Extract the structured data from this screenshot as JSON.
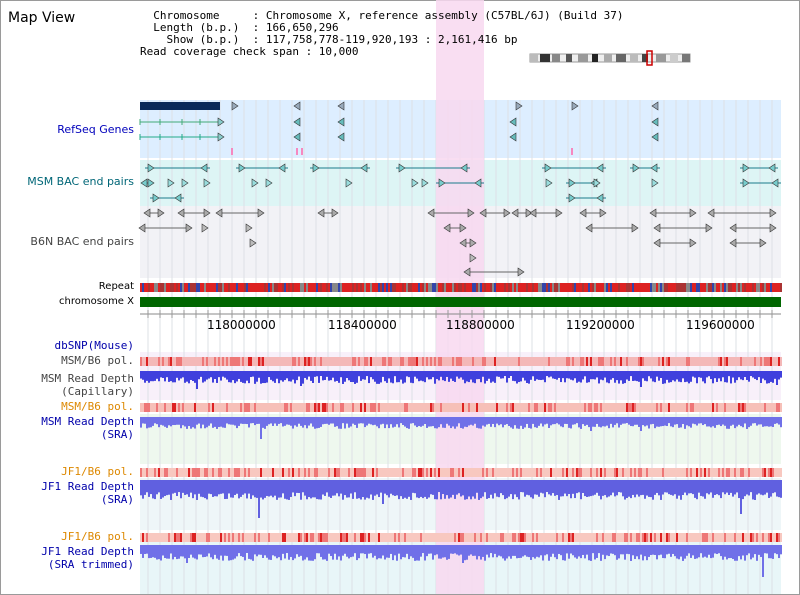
{
  "app": {
    "title": "Map View"
  },
  "header": {
    "lines": [
      "  Chromosome     : Chromosome X, reference assembly (C57BL/6J) (Build 37)",
      "  Length (b.p.)  : 166,650,296",
      "    Show (b.p.)  : 117,758,778-119,920,193 : 2,161,416 bp",
      "Read coverage check span : 10,000"
    ]
  },
  "tracks": {
    "refseq": "RefSeq Genes",
    "msm_bac": "MSM BAC end pairs",
    "b6n_bac": "B6N BAC end pairs",
    "repeat": "Repeat",
    "chromosome": "chromosome X",
    "dbsnp": "dbSNP(Mouse)",
    "msm_b6_pol_1": "MSM/B6 pol.",
    "msm_read_depth_cap_1": "MSM Read Depth",
    "msm_read_depth_cap_2": "(Capillary)",
    "msm_b6_pol_2": "MSM/B6 pol.",
    "msm_read_depth_sra_1": "MSM Read Depth",
    "msm_read_depth_sra_2": "(SRA)",
    "jf1_b6_pol_1": "JF1/B6 pol.",
    "jf1_read_depth_sra_1": "JF1 Read Depth",
    "jf1_read_depth_sra_2": "(SRA)",
    "jf1_b6_pol_2": "JF1/B6 pol.",
    "jf1_read_depth_trim_1": "JF1 Read Depth",
    "jf1_read_depth_trim_2": "(SRA trimmed)"
  },
  "axis": {
    "ticks": [
      "118000000",
      "118400000",
      "118800000",
      "119200000",
      "119600000"
    ]
  },
  "colors": {
    "highlight": "#f8d8f0",
    "refseq_bg": "#ddeeff",
    "msm_bg": "#ddf5f5",
    "b6n_bg": "#f2f2f6",
    "chromosome": "#006600",
    "repeat": "#dd2222",
    "depth": "#5555ee"
  }
}
